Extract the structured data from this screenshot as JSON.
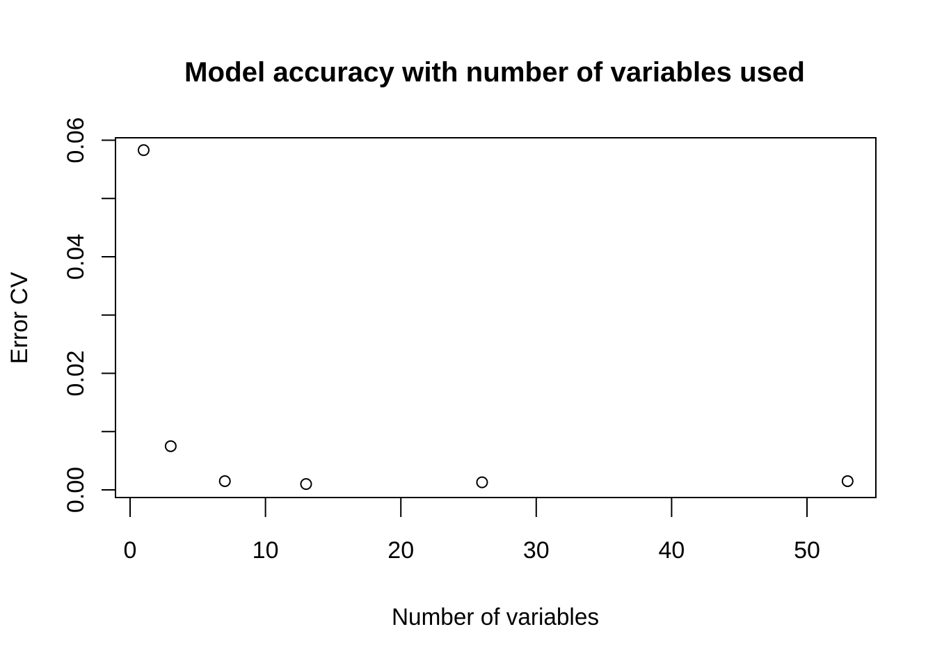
{
  "chart_data": {
    "type": "scatter",
    "title": "Model accuracy with number of variables used",
    "xlabel": "Number of variables",
    "ylabel": "Error CV",
    "x": [
      1,
      3,
      7,
      13,
      26,
      53
    ],
    "y": [
      0.0583,
      0.0075,
      0.0015,
      0.001,
      0.0013,
      0.0015
    ],
    "xlim": [
      0,
      55
    ],
    "ylim": [
      0,
      0.06
    ],
    "x_ticks": [
      "0",
      "10",
      "20",
      "30",
      "40",
      "50"
    ],
    "y_ticks": [
      "0.00",
      "0.02",
      "0.04",
      "0.06"
    ],
    "grid": false,
    "marker": "open-circle"
  }
}
